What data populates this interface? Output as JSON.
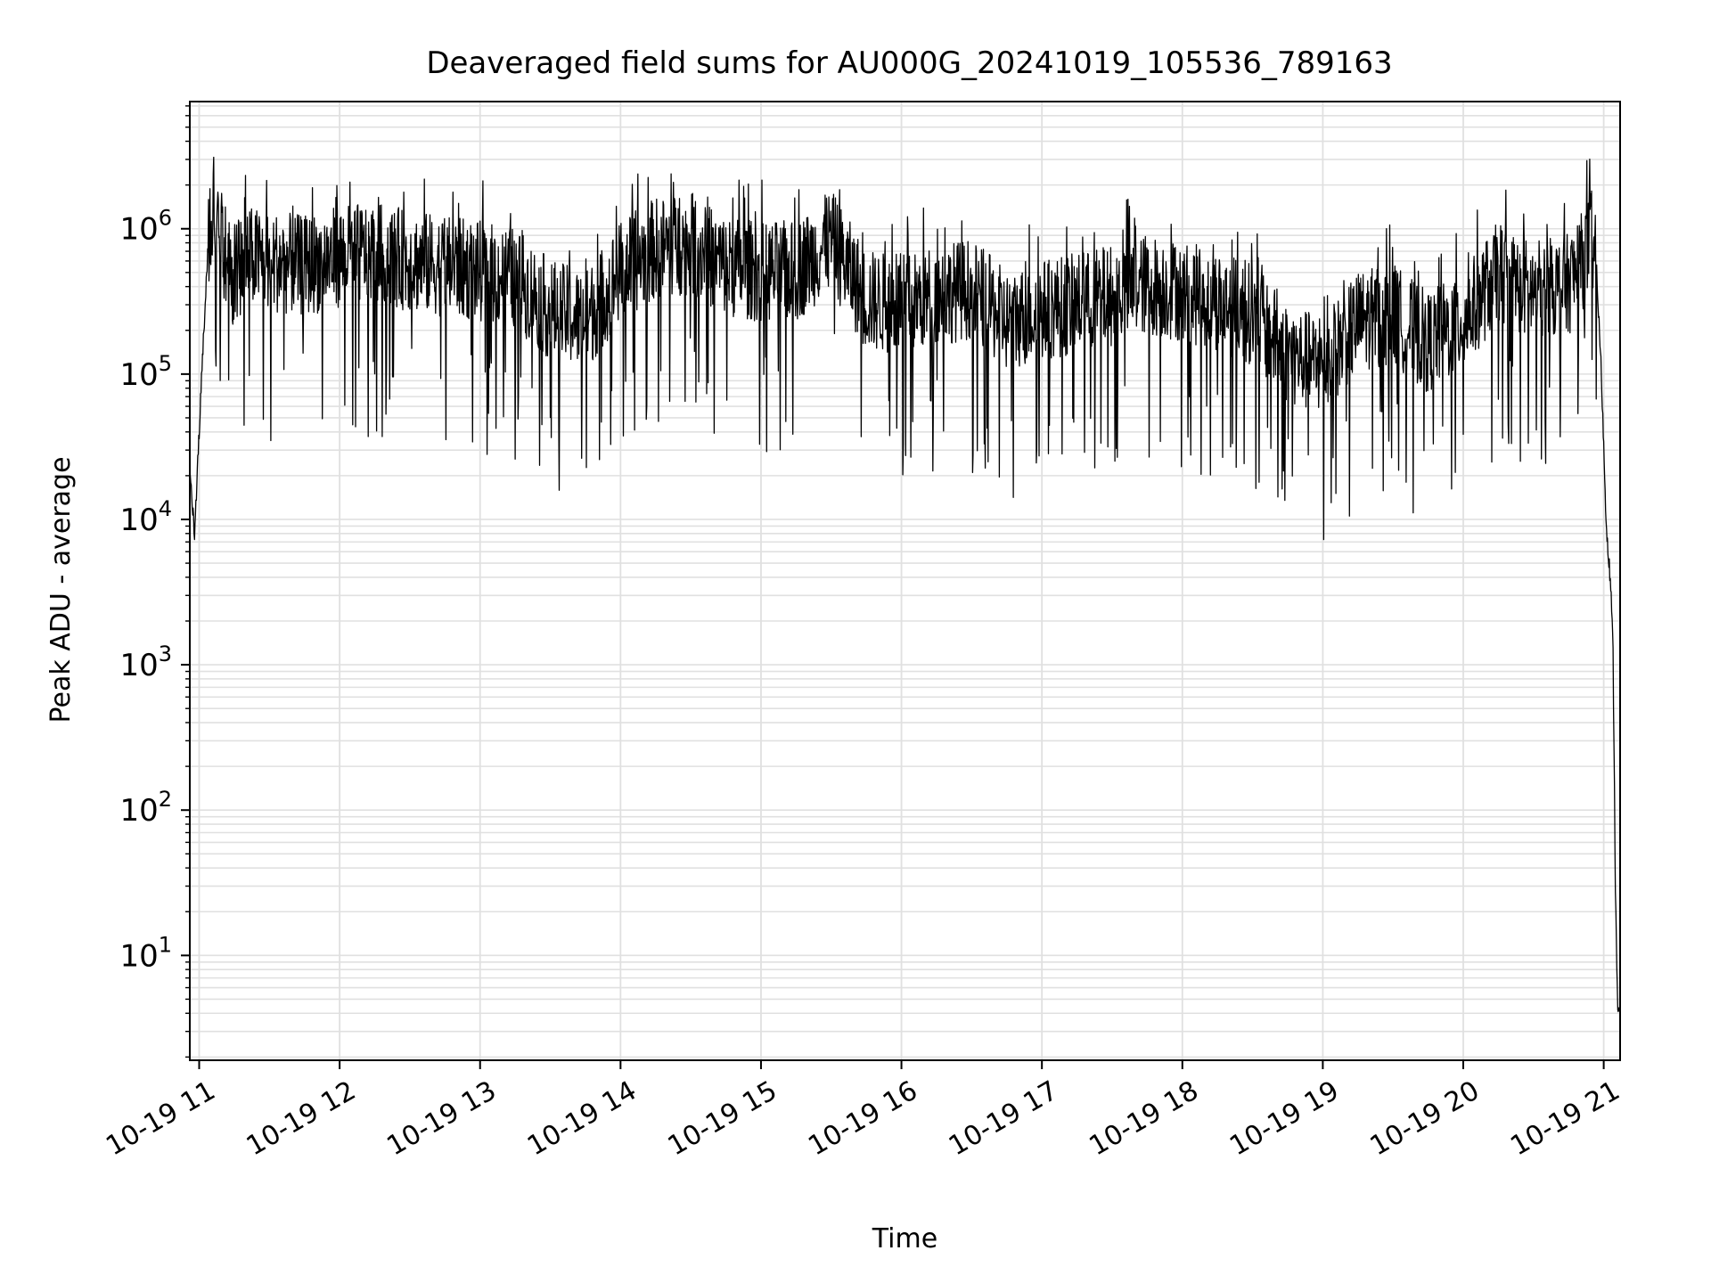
{
  "chart_data": {
    "type": "line",
    "title": "Deaveraged field sums for AU000G_20241019_105536_789163",
    "xlabel": "Time",
    "ylabel": "Peak ADU - average",
    "yscale": "log",
    "grid": true,
    "legend": "none",
    "colors": {
      "line": "#000000",
      "grid": "#e0e0e0",
      "axes": "#000000",
      "background": "#ffffff"
    },
    "x_ticks": [
      "10-19 11",
      "10-19 12",
      "10-19 13",
      "10-19 14",
      "10-19 15",
      "10-19 16",
      "10-19 17",
      "10-19 18",
      "10-19 19",
      "10-19 20",
      "10-19 21"
    ],
    "xlim": [
      "2024-10-19 10:56",
      "2024-10-19 21:07"
    ],
    "y_ticks": [
      {
        "base": "10",
        "exp": "1"
      },
      {
        "base": "10",
        "exp": "2"
      },
      {
        "base": "10",
        "exp": "3"
      },
      {
        "base": "10",
        "exp": "4"
      },
      {
        "base": "10",
        "exp": "5"
      },
      {
        "base": "10",
        "exp": "6"
      }
    ],
    "ylim": [
      1.9,
      7500000
    ],
    "series": [
      {
        "x": [
          "2024-10-19 10:56",
          "2024-10-19 10:58",
          "2024-10-19 11:00",
          "2024-10-19 11:02",
          "2024-10-19 11:04",
          "2024-10-19 11:06",
          "2024-10-19 11:08",
          "2024-10-19 11:10",
          "2024-10-19 11:15",
          "2024-10-19 11:20",
          "2024-10-19 11:30",
          "2024-10-19 11:45",
          "2024-10-19 12:00",
          "2024-10-19 12:15",
          "2024-10-19 12:30",
          "2024-10-19 12:45",
          "2024-10-19 13:00",
          "2024-10-19 13:15",
          "2024-10-19 13:30",
          "2024-10-19 13:45",
          "2024-10-19 14:00",
          "2024-10-19 14:15",
          "2024-10-19 14:30",
          "2024-10-19 14:45",
          "2024-10-19 15:00",
          "2024-10-19 15:15",
          "2024-10-19 15:30",
          "2024-10-19 15:45",
          "2024-10-19 16:00",
          "2024-10-19 16:15",
          "2024-10-19 16:30",
          "2024-10-19 16:45",
          "2024-10-19 17:00",
          "2024-10-19 17:15",
          "2024-10-19 17:30",
          "2024-10-19 17:45",
          "2024-10-19 18:00",
          "2024-10-19 18:15",
          "2024-10-19 18:30",
          "2024-10-19 18:45",
          "2024-10-19 19:00",
          "2024-10-19 19:15",
          "2024-10-19 19:30",
          "2024-10-19 19:45",
          "2024-10-19 20:00",
          "2024-10-19 20:15",
          "2024-10-19 20:30",
          "2024-10-19 20:45",
          "2024-10-19 20:50",
          "2024-10-19 20:55",
          "2024-10-19 20:57",
          "2024-10-19 20:59",
          "2024-10-19 21:01",
          "2024-10-19 21:03",
          "2024-10-19 21:04",
          "2024-10-19 21:05",
          "2024-10-19 21:06",
          "2024-10-19 21:07"
        ],
        "y": [
          20000,
          8000,
          40000,
          200000,
          900000,
          1600000,
          1400000,
          800000,
          500000,
          700000,
          650000,
          600000,
          700000,
          750000,
          650000,
          600000,
          550000,
          500000,
          300000,
          250000,
          550000,
          800000,
          850000,
          600000,
          550000,
          550000,
          900000,
          350000,
          320000,
          380000,
          420000,
          250000,
          300000,
          330000,
          380000,
          450000,
          400000,
          350000,
          280000,
          150000,
          120000,
          250000,
          280000,
          180000,
          250000,
          550000,
          400000,
          450000,
          600000,
          950000,
          500000,
          100000,
          10000,
          3500,
          1200,
          30,
          4,
          4
        ]
      }
    ],
    "noise_seed": 789163
  }
}
